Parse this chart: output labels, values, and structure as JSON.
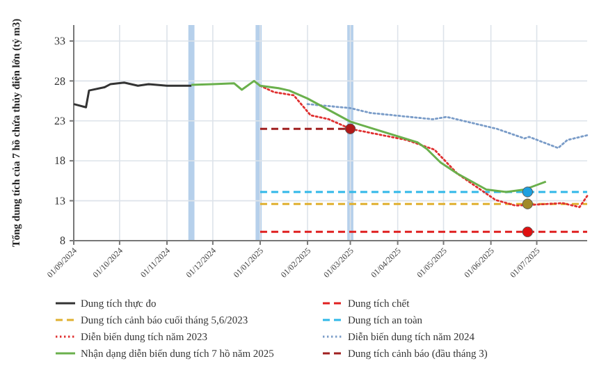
{
  "chart_data": {
    "type": "line",
    "ylabel": "Tổng dung tích của 7 hồ chứa thủy điện lớn (tỷ m3)",
    "xlim": [
      "2024-09-01",
      "2025-08-03"
    ],
    "ylim": [
      8,
      35
    ],
    "yticks": [
      8,
      13,
      18,
      23,
      28,
      33
    ],
    "xticks": [
      {
        "value": "2024-09-01",
        "label": "01/09/2024"
      },
      {
        "value": "2024-10-01",
        "label": "01/10/2024"
      },
      {
        "value": "2024-11-01",
        "label": "01/11/2024"
      },
      {
        "value": "2024-12-01",
        "label": "01/12/2024"
      },
      {
        "value": "2025-01-01",
        "label": "01/01/2025"
      },
      {
        "value": "2025-02-01",
        "label": "01/02/2025"
      },
      {
        "value": "2025-03-01",
        "label": "01/03/2025"
      },
      {
        "value": "2025-04-01",
        "label": "01/04/2025"
      },
      {
        "value": "2025-05-01",
        "label": "01/05/2025"
      },
      {
        "value": "2025-06-01",
        "label": "01/06/2025"
      },
      {
        "value": "2025-07-01",
        "label": "01/07/2025"
      }
    ],
    "grid": true,
    "legend": "bottom",
    "bands": [
      {
        "axis": "x",
        "from": "2024-11-15",
        "to": "2024-11-19",
        "color": "#a9c8e8"
      },
      {
        "axis": "x",
        "from": "2024-12-29",
        "to": "2025-01-02",
        "color": "#a9c8e8"
      },
      {
        "axis": "x",
        "from": "2025-02-27",
        "to": "2025-03-03",
        "color": "#a9c8e8"
      }
    ],
    "series": [
      {
        "name": "Dung tích thực đo",
        "color": "#333333",
        "line_style": "solid",
        "x": [
          "2024-09-01",
          "2024-09-09",
          "2024-09-11",
          "2024-09-21",
          "2024-09-25",
          "2024-10-04",
          "2024-10-13",
          "2024-10-20",
          "2024-11-01",
          "2024-11-17"
        ],
        "values": [
          25.1,
          24.7,
          26.8,
          27.2,
          27.6,
          27.8,
          27.4,
          27.6,
          27.4,
          27.4
        ]
      },
      {
        "name": "Dung tích chết",
        "color": "#e02020",
        "line_style": "dashed",
        "x": [
          "2025-01-01",
          "2025-08-03"
        ],
        "values": [
          9.1,
          9.1
        ]
      },
      {
        "name": "Dung tích cảnh báo cuối tháng 5,6/2023",
        "color": "#e0b030",
        "line_style": "dashed",
        "x": [
          "2025-01-01",
          "2025-08-03"
        ],
        "values": [
          12.6,
          12.6
        ]
      },
      {
        "name": "Dung tích an toàn",
        "color": "#30b8e8",
        "line_style": "dashed",
        "x": [
          "2025-01-01",
          "2025-08-03"
        ],
        "values": [
          14.1,
          14.1
        ]
      },
      {
        "name": "Diễn biến dung tích năm 2023",
        "color": "#e03030",
        "line_style": "dotted",
        "x": [
          "2025-01-01",
          "2025-01-10",
          "2025-01-23",
          "2025-02-03",
          "2025-02-15",
          "2025-03-01",
          "2025-04-07",
          "2025-04-25",
          "2025-05-10",
          "2025-06-04",
          "2025-06-17",
          "2025-06-29",
          "2025-07-18",
          "2025-07-29",
          "2025-08-03"
        ],
        "values": [
          27.4,
          26.6,
          26.2,
          23.7,
          23.2,
          22.0,
          20.6,
          19.4,
          16.4,
          13.1,
          12.4,
          12.5,
          12.7,
          12.2,
          13.6
        ]
      },
      {
        "name": "Diễn biến dung tích năm 2024",
        "color": "#7a9cc8",
        "line_style": "dotted",
        "x": [
          "2025-02-01",
          "2025-03-01",
          "2025-03-14",
          "2025-04-24",
          "2025-05-03",
          "2025-06-05",
          "2025-06-23",
          "2025-06-26",
          "2025-07-15",
          "2025-07-21",
          "2025-08-03"
        ],
        "values": [
          25.1,
          24.6,
          24.0,
          23.2,
          23.5,
          22.0,
          20.8,
          21.0,
          19.6,
          20.6,
          21.2
        ]
      },
      {
        "name": "Nhận dạng diễn biến dung tích 7 hồ năm 2025",
        "color": "#6ab04c",
        "line_style": "solid",
        "x": [
          "2024-11-17",
          "2024-12-01",
          "2024-12-15",
          "2024-12-20",
          "2024-12-28",
          "2025-01-01",
          "2025-01-13",
          "2025-01-20",
          "2025-02-01",
          "2025-03-01",
          "2025-04-14",
          "2025-04-20",
          "2025-04-29",
          "2025-05-10",
          "2025-05-29",
          "2025-06-11",
          "2025-06-23",
          "2025-07-07"
        ],
        "values": [
          27.5,
          27.6,
          27.7,
          26.9,
          28.0,
          27.4,
          27.1,
          26.8,
          25.8,
          22.9,
          20.3,
          19.5,
          17.8,
          16.4,
          14.4,
          14.1,
          14.4,
          15.4
        ]
      },
      {
        "name": "Dung tích cảnh báo (đầu tháng 3)",
        "color": "#a02020",
        "line_style": "dashed",
        "x": [
          "2025-01-01",
          "2025-03-01"
        ],
        "values": [
          22.0,
          22.0
        ]
      },
      {
        "type": "scatter",
        "marker": "circle",
        "x": [
          "2025-03-01",
          "2025-06-25",
          "2025-06-25",
          "2025-06-25"
        ],
        "values": [
          22.0,
          14.1,
          12.6,
          9.1
        ],
        "colors": [
          "#b01818",
          "#1ea0e0",
          "#a08a28",
          "#e01010"
        ]
      }
    ]
  }
}
